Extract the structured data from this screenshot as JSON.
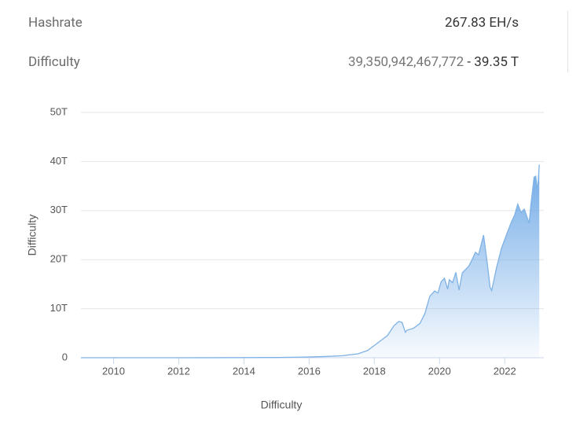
{
  "stats": [
    {
      "label": "Hashrate",
      "value": "267.83 EH/s"
    },
    {
      "label": "Difficulty",
      "value_full": "39,350,942,467,772",
      "value_short": " - 39.35 T"
    }
  ],
  "chart_data": {
    "type": "area",
    "y_axis_label": "Difficulty",
    "x_axis_label": "Difficulty",
    "series": [
      {
        "name": "Difficulty",
        "color": "#7fb2e5",
        "x": [
          2009.0,
          2010,
          2011,
          2012,
          2013,
          2014,
          2015,
          2016,
          2016.5,
          2017,
          2017.5,
          2017.8,
          2018.0,
          2018.2,
          2018.4,
          2018.6,
          2018.75,
          2018.85,
          2018.95,
          2019.0,
          2019.2,
          2019.4,
          2019.55,
          2019.7,
          2019.85,
          2019.95,
          2020.05,
          2020.15,
          2020.25,
          2020.3,
          2020.4,
          2020.5,
          2020.6,
          2020.7,
          2020.9,
          2021.0,
          2021.1,
          2021.2,
          2021.35,
          2021.45,
          2021.55,
          2021.6,
          2021.75,
          2021.9,
          2022.05,
          2022.2,
          2022.3,
          2022.4,
          2022.5,
          2022.6,
          2022.75,
          2022.8,
          2022.9,
          2022.95,
          2023.0,
          2023.02,
          2023.06
        ],
        "values": [
          0,
          0,
          0.001,
          0.002,
          0.01,
          0.03,
          0.05,
          0.15,
          0.25,
          0.4,
          0.8,
          1.5,
          2.5,
          3.5,
          4.5,
          6.5,
          7.4,
          7.2,
          5.2,
          5.6,
          6.0,
          7.0,
          9.0,
          12.5,
          13.6,
          13.2,
          15.5,
          16.2,
          14.0,
          15.9,
          15.3,
          17.4,
          13.8,
          17.3,
          18.7,
          20.0,
          21.5,
          21.0,
          25.0,
          20.0,
          14.4,
          13.7,
          18.4,
          22.3,
          25.0,
          27.6,
          29.0,
          31.3,
          29.6,
          30.3,
          27.4,
          31.0,
          36.8,
          37.0,
          34.5,
          35.2,
          39.35
        ]
      }
    ],
    "xlim": [
      2009,
      2023.2
    ],
    "xticks": [
      2010,
      2012,
      2014,
      2016,
      2018,
      2020,
      2022
    ],
    "ylim": [
      0,
      50
    ],
    "yticks": [
      0,
      {
        "value": 10,
        "label": "10T"
      },
      {
        "value": 20,
        "label": "20T"
      },
      {
        "value": 30,
        "label": "30T"
      },
      {
        "value": 40,
        "label": "40T"
      },
      {
        "value": 50,
        "label": "50T"
      }
    ],
    "grid": true
  }
}
